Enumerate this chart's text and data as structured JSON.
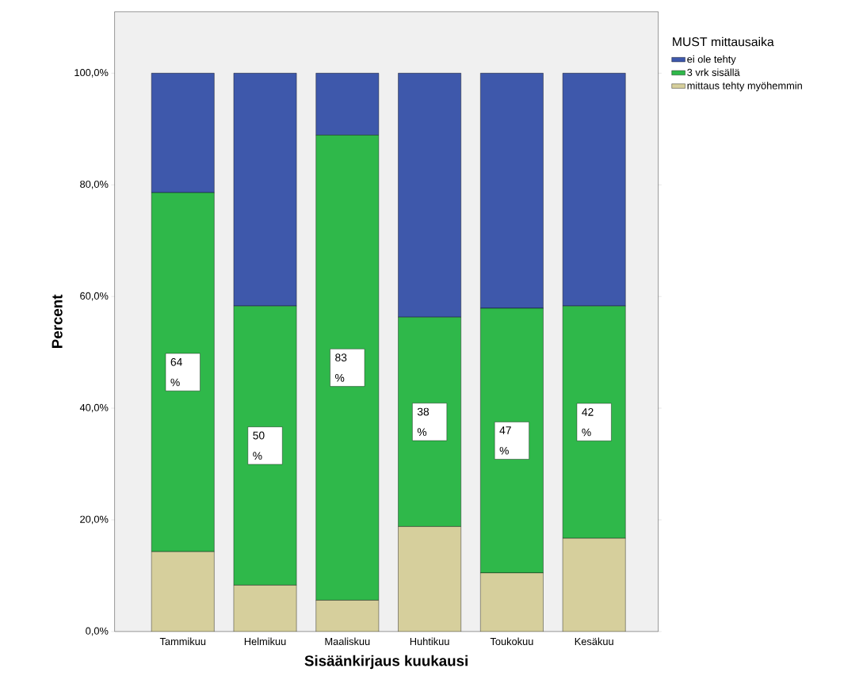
{
  "chart_data": {
    "type": "bar",
    "stacked": true,
    "xlabel": "Sisäänkirjaus kuukausi",
    "ylabel": "Percent",
    "legend_title": "MUST mittausaika",
    "legend": "right",
    "categories": [
      "Tammikuu",
      "Helmikuu",
      "Maaliskuu",
      "Huhtikuu",
      "Toukokuu",
      "Kesäkuu"
    ],
    "ylim": [
      0,
      111
    ],
    "yticks": [
      {
        "value": 0,
        "label": "0,0%"
      },
      {
        "value": 20,
        "label": "20,0%"
      },
      {
        "value": 40,
        "label": "40,0%"
      },
      {
        "value": 60,
        "label": "60,0%"
      },
      {
        "value": 80,
        "label": "80,0%"
      },
      {
        "value": 100,
        "label": "100,0%"
      }
    ],
    "series": [
      {
        "name": "mittaus tehty myöhemmin",
        "color": "#d6cf9c",
        "values": [
          14.3,
          8.3,
          5.6,
          18.8,
          10.5,
          16.7
        ]
      },
      {
        "name": "3 vrk sisällä",
        "color": "#2fb84a",
        "values": [
          64.3,
          50,
          83.3,
          37.5,
          47.4,
          41.6
        ],
        "value_labels": [
          "64 %",
          "50 %",
          "83 %",
          "38 %",
          "47 %",
          "42 %"
        ]
      },
      {
        "name": "ei ole tehty",
        "color": "#3e58ab",
        "values": [
          21.4,
          41.7,
          11.1,
          43.7,
          42.1,
          41.7
        ]
      }
    ]
  }
}
